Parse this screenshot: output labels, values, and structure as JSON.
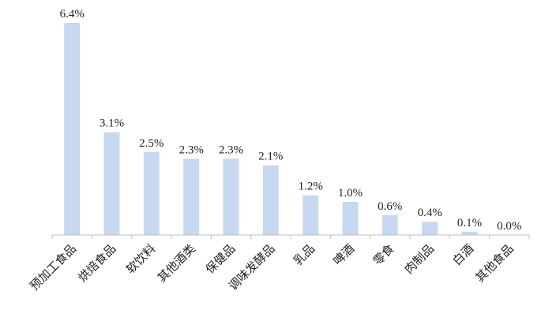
{
  "chart_data": {
    "type": "bar",
    "categories": [
      "预加工食品",
      "烘焙食品",
      "软饮料",
      "其他酒类",
      "保健品",
      "调味发酵品",
      "乳品",
      "啤酒",
      "零食",
      "肉制品",
      "白酒",
      "其他食品"
    ],
    "values": [
      6.4,
      3.1,
      2.5,
      2.3,
      2.3,
      2.1,
      1.2,
      1.0,
      0.6,
      0.4,
      0.1,
      0.0
    ],
    "data_labels": [
      "6.4%",
      "3.1%",
      "2.5%",
      "2.3%",
      "2.3%",
      "2.1%",
      "1.2%",
      "1.0%",
      "0.6%",
      "0.4%",
      "0.1%",
      "0.0%"
    ],
    "title": "",
    "xlabel": "",
    "ylabel": "",
    "ylim": [
      0,
      6.4
    ],
    "grid": false,
    "legend": "none",
    "bar_color": "#c6d9f1"
  }
}
